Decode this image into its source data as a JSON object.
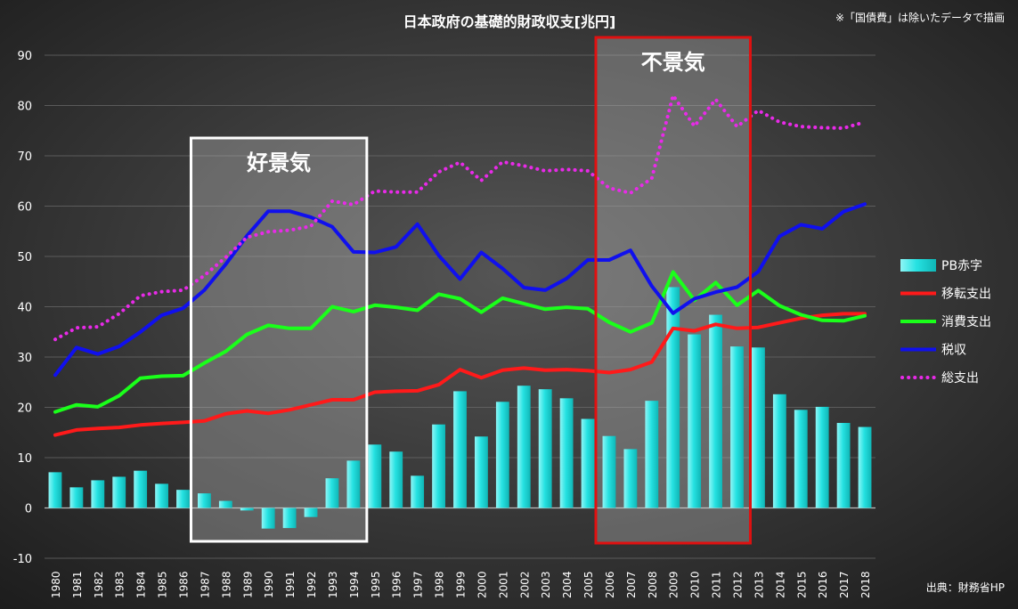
{
  "chart_data": {
    "type": "bar",
    "title": "日本政府の基礎的財政収支[兆円]",
    "note": "※「国債費」は除いたデータで描画",
    "source": "出典：財務省HP",
    "ylim": [
      -10,
      90
    ],
    "yticks": [
      -10,
      0,
      10,
      20,
      30,
      40,
      50,
      60,
      70,
      80,
      90
    ],
    "categories": [
      "1980",
      "1981",
      "1982",
      "1983",
      "1984",
      "1985",
      "1986",
      "1987",
      "1988",
      "1989",
      "1990",
      "1991",
      "1992",
      "1993",
      "1994",
      "1995",
      "1996",
      "1997",
      "1998",
      "1999",
      "2000",
      "2001",
      "2002",
      "2003",
      "2004",
      "2005",
      "2006",
      "2007",
      "2008",
      "2009",
      "2010",
      "2011",
      "2012",
      "2013",
      "2014",
      "2015",
      "2016",
      "2017",
      "2018"
    ],
    "series": [
      {
        "name": "PB赤字",
        "kind": "bar",
        "color": "#35e6e6",
        "values": [
          7.1,
          4.1,
          5.5,
          6.2,
          7.4,
          4.8,
          3.6,
          2.9,
          1.4,
          -0.5,
          -4.1,
          -4.0,
          -1.8,
          5.9,
          9.4,
          12.6,
          11.2,
          6.4,
          16.6,
          23.2,
          14.2,
          21.1,
          24.3,
          23.6,
          21.8,
          17.7,
          14.3,
          11.7,
          21.3,
          43.9,
          34.5,
          38.4,
          32.1,
          31.9,
          22.6,
          19.5,
          20.1,
          16.9,
          16.1
        ]
      },
      {
        "name": "移転支出",
        "kind": "line",
        "color": "#ff1a1a",
        "values": [
          14.5,
          15.5,
          15.8,
          16.0,
          16.5,
          16.8,
          17.0,
          17.3,
          18.7,
          19.3,
          18.8,
          19.5,
          20.5,
          21.5,
          21.5,
          23.0,
          23.2,
          23.3,
          24.5,
          27.5,
          25.9,
          27.4,
          27.8,
          27.4,
          27.5,
          27.3,
          26.9,
          27.5,
          29.0,
          35.7,
          35.2,
          36.5,
          35.7,
          35.9,
          36.8,
          37.7,
          38.3,
          38.6,
          38.6
        ]
      },
      {
        "name": "消費支出",
        "kind": "line",
        "color": "#1aff1a",
        "values": [
          19.1,
          20.5,
          20.1,
          22.3,
          25.8,
          26.2,
          26.3,
          28.8,
          31.1,
          34.5,
          36.3,
          35.7,
          35.7,
          40.0,
          39.0,
          40.3,
          39.9,
          39.3,
          42.5,
          41.6,
          38.9,
          41.7,
          40.6,
          39.5,
          39.9,
          39.6,
          36.9,
          35.0,
          36.8,
          46.9,
          41.3,
          44.8,
          40.3,
          43.2,
          40.2,
          38.4,
          37.3,
          37.2,
          38.2
        ]
      },
      {
        "name": "税収",
        "kind": "line",
        "color": "#1010ee",
        "values": [
          26.4,
          31.9,
          30.6,
          32.1,
          35.0,
          38.3,
          39.7,
          43.3,
          48.4,
          54.1,
          59.0,
          59.0,
          57.8,
          55.9,
          50.9,
          50.8,
          51.9,
          56.4,
          50.2,
          45.5,
          50.8,
          47.6,
          43.8,
          43.3,
          45.6,
          49.3,
          49.3,
          51.2,
          44.1,
          38.7,
          41.6,
          42.9,
          43.9,
          47.0,
          54.0,
          56.3,
          55.5,
          58.9,
          60.4
        ]
      },
      {
        "name": "総支出",
        "kind": "dotted",
        "color": "#e82ae8",
        "values": [
          33.5,
          35.8,
          36.0,
          38.6,
          42.2,
          43.0,
          43.3,
          46.2,
          49.8,
          53.8,
          54.9,
          55.2,
          56.0,
          61.0,
          60.3,
          63.0,
          62.8,
          62.8,
          66.8,
          68.7,
          65.1,
          68.8,
          68.0,
          67.0,
          67.3,
          67.0,
          63.6,
          62.6,
          65.5,
          82.0,
          75.9,
          81.2,
          75.8,
          79.0,
          76.7,
          75.8,
          75.6,
          75.5,
          76.7
        ]
      }
    ],
    "annotations": [
      {
        "label": "好景気",
        "from": "1987",
        "to": "1994",
        "color": "#ffffff"
      },
      {
        "label": "不景気",
        "from": "2006",
        "to": "2012",
        "color": "#e01010"
      }
    ],
    "legend_position": "right",
    "grid": true
  }
}
